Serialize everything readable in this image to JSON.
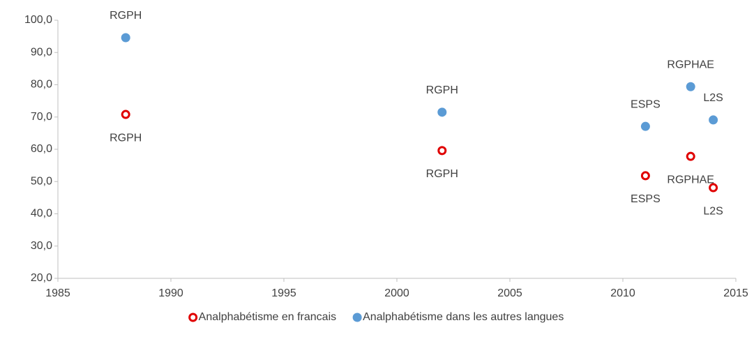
{
  "chart_data": {
    "type": "scatter",
    "series": [
      {
        "name": "Analphabétisme en francais",
        "color": "#e00000",
        "hollow": true,
        "label_position": "below",
        "x": [
          1988,
          2002,
          2011,
          2013,
          2014
        ],
        "values": [
          70.8,
          59.6,
          51.8,
          57.8,
          48.1
        ],
        "labels": [
          "RGPH",
          "RGPH",
          "ESPS",
          "RGPHAE",
          "L2S"
        ]
      },
      {
        "name": "Analphabétisme dans les autres langues",
        "color": "#5b9bd5",
        "hollow": false,
        "label_position": "above",
        "x": [
          1988,
          2002,
          2011,
          2013,
          2014
        ],
        "values": [
          94.6,
          71.5,
          67.1,
          79.4,
          69.1
        ],
        "labels": [
          "RGPH",
          "RGPH",
          "ESPS",
          "RGPHAE",
          "L2S"
        ]
      }
    ],
    "xlim": [
      1985,
      2015
    ],
    "xticks": [
      1985,
      1990,
      1995,
      2000,
      2005,
      2010,
      2015
    ],
    "ylim": [
      20,
      100
    ],
    "yticks": [
      {
        "value": 20,
        "label": "20,0"
      },
      {
        "value": 30,
        "label": "30,0"
      },
      {
        "value": 40,
        "label": "40,0"
      },
      {
        "value": 50,
        "label": "50,0"
      },
      {
        "value": 60,
        "label": "60,0"
      },
      {
        "value": 70,
        "label": "70,0"
      },
      {
        "value": 80,
        "label": "80,0"
      },
      {
        "value": 90,
        "label": "90,0"
      },
      {
        "value": 100,
        "label": "100,0"
      }
    ],
    "legend": "bottom"
  }
}
